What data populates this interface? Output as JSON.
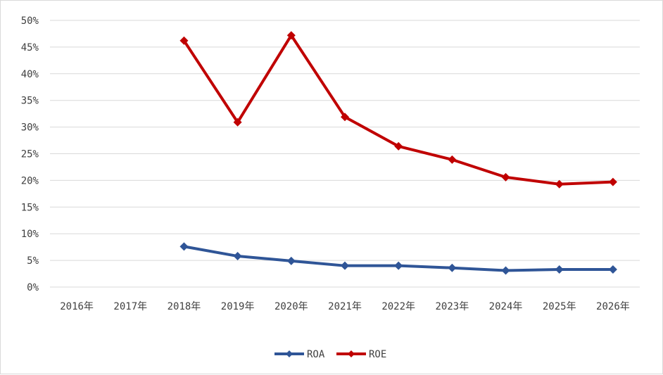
{
  "chart_data": {
    "type": "line",
    "categories": [
      "2016年",
      "2017年",
      "2018年",
      "2019年",
      "2020年",
      "2021年",
      "2022年",
      "2023年",
      "2024年",
      "2025年",
      "2026年"
    ],
    "yticks": [
      "0%",
      "5%",
      "10%",
      "15%",
      "20%",
      "25%",
      "30%",
      "35%",
      "40%",
      "45%",
      "50%"
    ],
    "ylim": [
      0,
      50
    ],
    "grid": true,
    "legend": "bottom",
    "series": [
      {
        "name": "ROA",
        "color": "#2f5597",
        "values": [
          null,
          null,
          7.6,
          5.8,
          4.9,
          4.0,
          4.0,
          3.6,
          3.1,
          3.3,
          3.3
        ]
      },
      {
        "name": "ROE",
        "color": "#c00000",
        "values": [
          null,
          null,
          46.2,
          30.9,
          47.2,
          31.9,
          26.4,
          23.9,
          20.6,
          19.3,
          19.7
        ]
      }
    ]
  }
}
